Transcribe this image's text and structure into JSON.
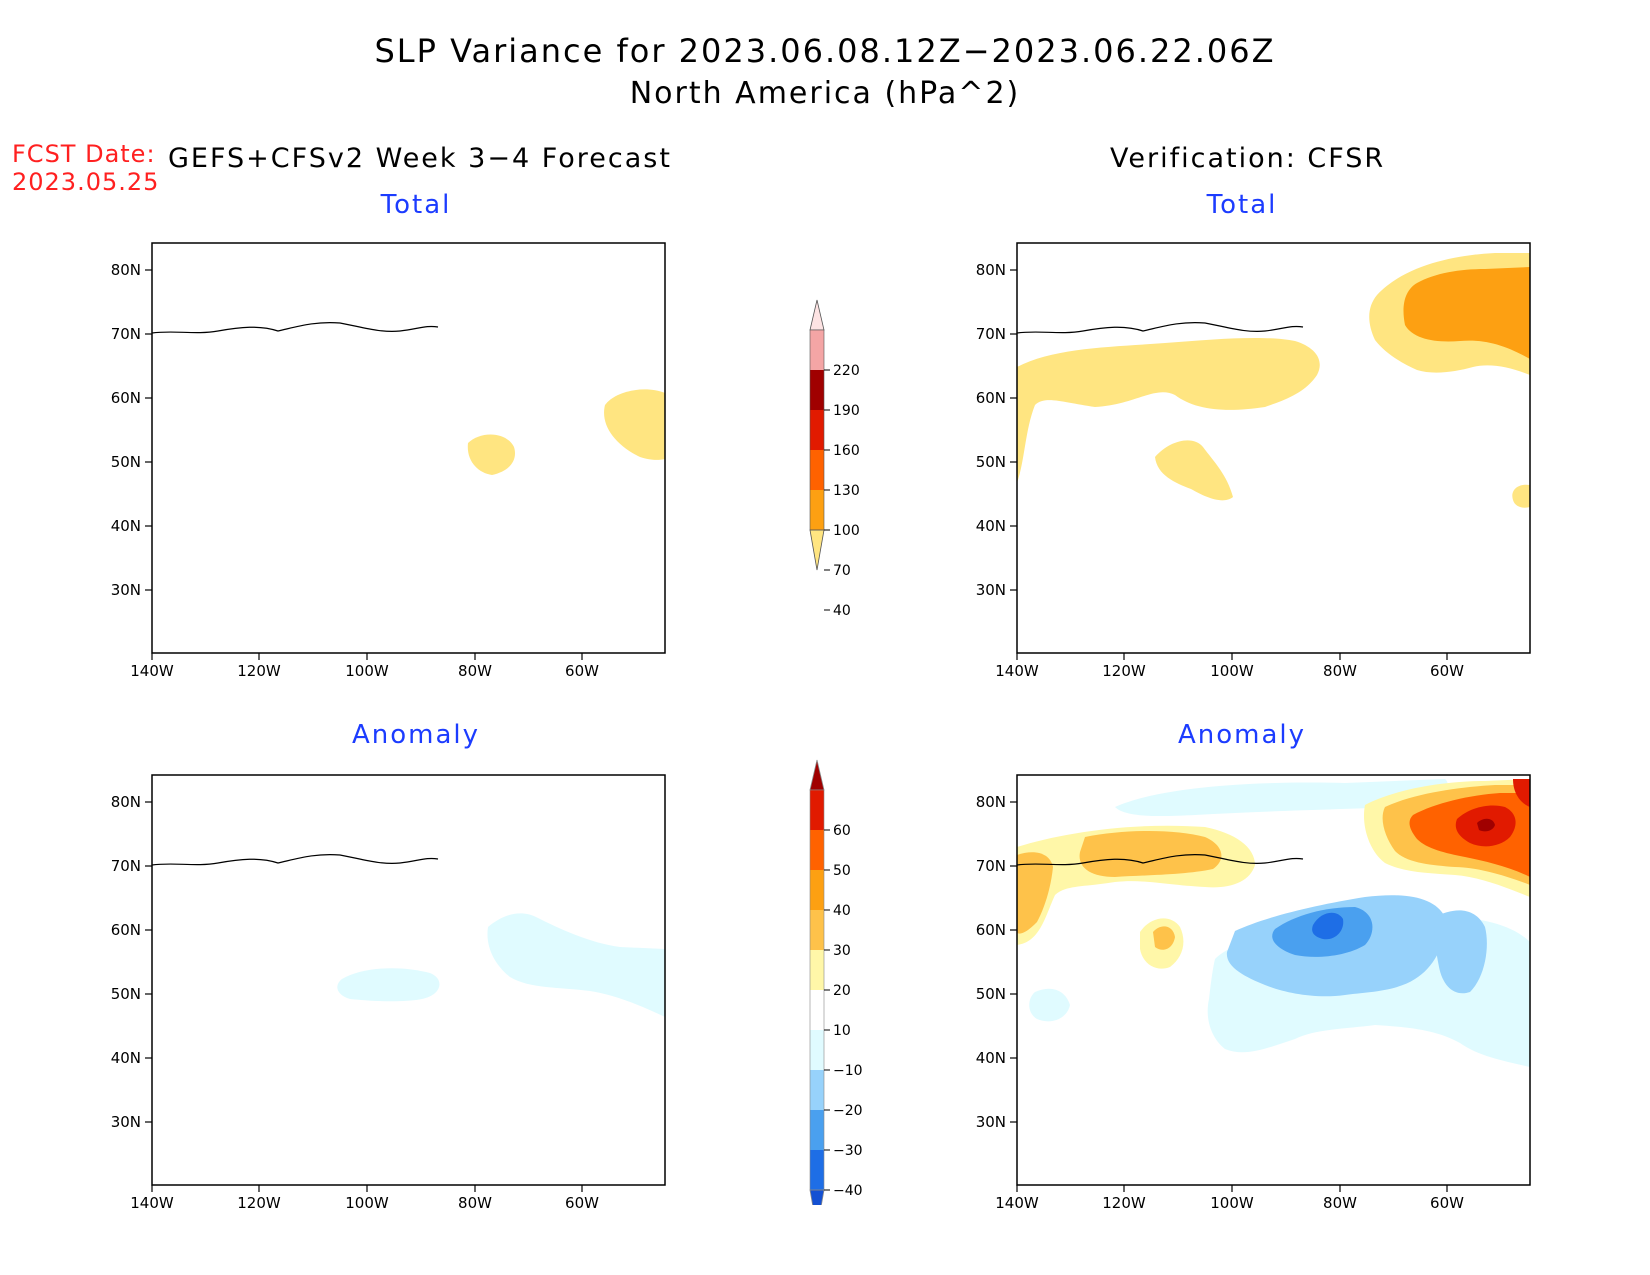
{
  "title": "SLP Variance for 2023.06.08.12Z−2023.06.22.06Z",
  "subtitle": "North America (hPa^2)",
  "fcst_date_label": "FCST Date:",
  "fcst_date_value": "2023.05.25",
  "left_header": "GEFS+CFSv2 Week 3−4 Forecast",
  "right_header": "Verification: CFSR",
  "panels": {
    "forecast_total": {
      "title": "Total"
    },
    "verification_total": {
      "title": "Total"
    },
    "forecast_anomaly": {
      "title": "Anomaly"
    },
    "verification_anomaly": {
      "title": "Anomaly"
    }
  },
  "axes": {
    "lat_labels": [
      "80N",
      "70N",
      "60N",
      "50N",
      "40N",
      "30N"
    ],
    "lon_labels": [
      "140W",
      "120W",
      "100W",
      "80W",
      "60W"
    ]
  },
  "colorbar_total": {
    "labels": [
      "220",
      "190",
      "160",
      "130",
      "100",
      "70",
      "40"
    ],
    "colors": [
      "#fde3e3",
      "#f4a5a5",
      "#a00000",
      "#e11a00",
      "#ff6200",
      "#fda012",
      "#ffe581"
    ]
  },
  "colorbar_anomaly": {
    "labels": [
      "60",
      "50",
      "40",
      "30",
      "20",
      "10",
      "−10",
      "−20",
      "−30",
      "−40"
    ],
    "colors": [
      "#a00000",
      "#e11a00",
      "#ff6200",
      "#fda012",
      "#fec24a",
      "#fff7a8",
      "#ffffff",
      "#e0fbff",
      "#97d2fb",
      "#4aa0ef",
      "#1e6ee6",
      "#1450d2"
    ]
  }
}
